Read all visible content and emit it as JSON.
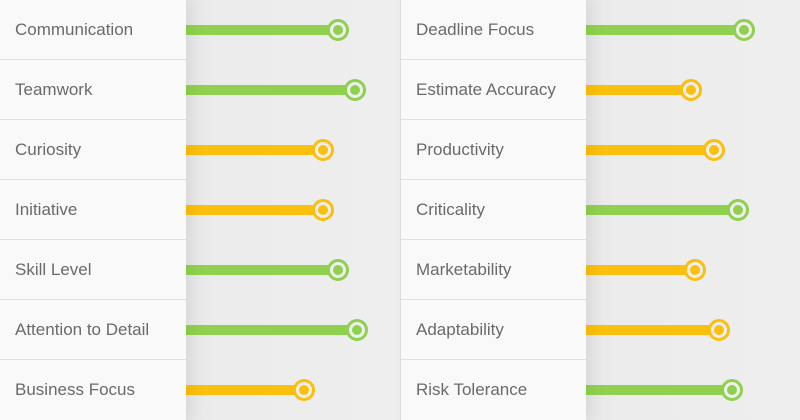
{
  "colors": {
    "green": "#8fd14f",
    "yellow": "#fbbf0e"
  },
  "left": [
    {
      "label": "Communication",
      "value": 0.71,
      "color": "green"
    },
    {
      "label": "Teamwork",
      "value": 0.79,
      "color": "green"
    },
    {
      "label": "Curiosity",
      "value": 0.64,
      "color": "yellow"
    },
    {
      "label": "Initiative",
      "value": 0.64,
      "color": "yellow"
    },
    {
      "label": "Skill Level",
      "value": 0.71,
      "color": "green"
    },
    {
      "label": "Attention to Detail",
      "value": 0.8,
      "color": "green"
    },
    {
      "label": "Business Focus",
      "value": 0.55,
      "color": "yellow"
    }
  ],
  "right": [
    {
      "label": "Deadline Focus",
      "value": 0.74,
      "color": "green"
    },
    {
      "label": "Estimate Accuracy",
      "value": 0.49,
      "color": "yellow"
    },
    {
      "label": "Productivity",
      "value": 0.6,
      "color": "yellow"
    },
    {
      "label": "Criticality",
      "value": 0.71,
      "color": "green"
    },
    {
      "label": "Marketability",
      "value": 0.51,
      "color": "yellow"
    },
    {
      "label": "Adaptability",
      "value": 0.62,
      "color": "yellow"
    },
    {
      "label": "Risk Tolerance",
      "value": 0.68,
      "color": "green"
    }
  ]
}
